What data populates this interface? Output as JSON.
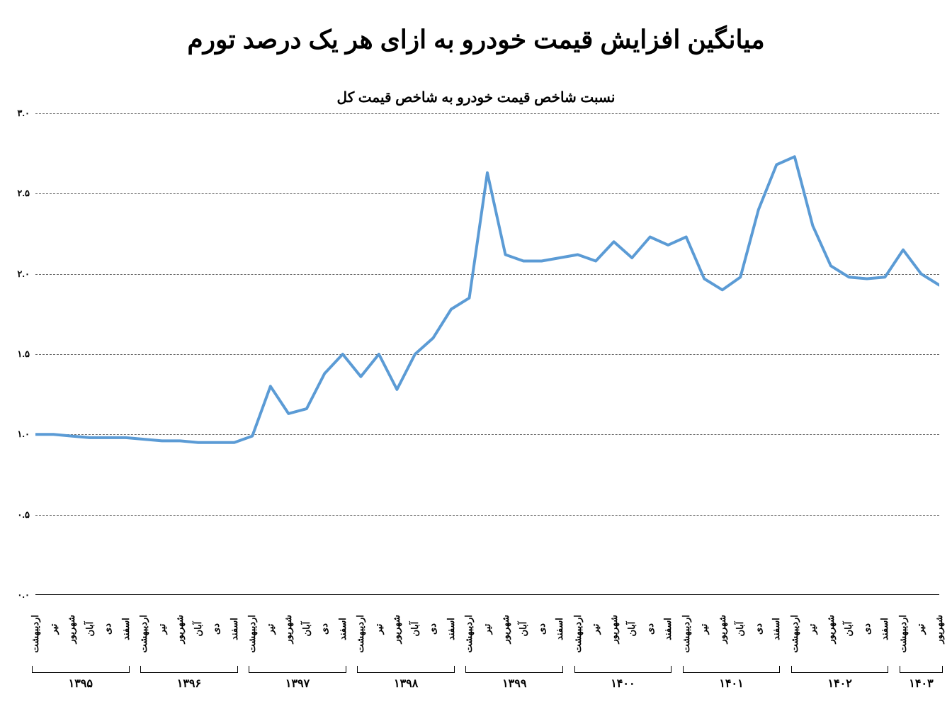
{
  "chart": {
    "type": "line",
    "main_title": "میانگین افزایش قیمت خودرو به ازای هر یک درصد تورم",
    "subtitle": "نسبت شاخص قیمت خودرو به شاخص قیمت کل",
    "title_fontsize": 36,
    "subtitle_fontsize": 20,
    "background_color": "#ffffff",
    "line_color": "#5b9bd5",
    "line_width": 4,
    "grid_color": "#666666",
    "grid_style": "dashed",
    "ylim": [
      0.0,
      3.0
    ],
    "ytick_step": 0.5,
    "y_tick_labels": [
      "۰.۰",
      "۰.۵",
      "۱.۰",
      "۱.۵",
      "۲.۰",
      "۲.۵",
      "۳.۰"
    ],
    "x_months": [
      "اردیبهشت",
      "تیر",
      "شهریور",
      "آبان",
      "دی",
      "اسفند"
    ],
    "years": [
      "۱۳۹۵",
      "۱۳۹۶",
      "۱۳۹۷",
      "۱۳۹۸",
      "۱۳۹۹",
      "۱۴۰۰",
      "۱۴۰۱",
      "۱۴۰۲",
      "۱۴۰۳"
    ],
    "year_month_counts": [
      6,
      6,
      6,
      6,
      6,
      6,
      6,
      6,
      3
    ],
    "values": [
      1.0,
      1.0,
      0.99,
      0.98,
      0.98,
      0.98,
      0.97,
      0.96,
      0.96,
      0.95,
      0.95,
      0.95,
      0.99,
      1.3,
      1.13,
      1.16,
      1.38,
      1.5,
      1.36,
      1.5,
      1.28,
      1.5,
      1.6,
      1.78,
      1.85,
      2.63,
      2.12,
      2.08,
      2.08,
      2.1,
      2.12,
      2.08,
      2.2,
      2.1,
      2.23,
      2.18,
      2.23,
      1.97,
      1.9,
      1.98,
      2.4,
      2.68,
      2.73,
      2.3,
      2.05,
      1.98,
      1.97,
      1.98,
      2.15,
      2.0,
      1.93
    ]
  }
}
